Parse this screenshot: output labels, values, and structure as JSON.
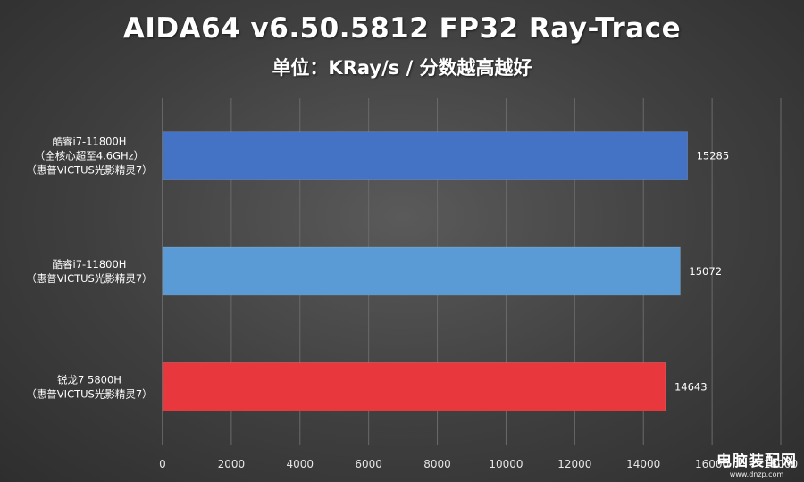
{
  "chart_data": {
    "type": "bar",
    "orientation": "horizontal",
    "title": "AIDA64 v6.50.5812 FP32 Ray-Trace",
    "subtitle": "单位：KRay/s / 分数越高越好",
    "categories": [
      [
        "酷睿i7-11800H",
        "（全核心超至4.6GHz）",
        "（惠普VICTUS光影精灵7）"
      ],
      [
        "酷睿i7-11800H",
        "（惠普VICTUS光影精灵7）"
      ],
      [
        "锐龙7 5800H",
        "（惠普VICTUS光影精灵7）"
      ]
    ],
    "values": [
      15285,
      15072,
      14643
    ],
    "value_labels": [
      "15285",
      "15072",
      "14643"
    ],
    "bar_colors": [
      "#4472c4",
      "#5b9bd5",
      "#e8383d"
    ],
    "xlim": [
      0,
      18000
    ],
    "xticks": [
      "0",
      "2000",
      "4000",
      "6000",
      "8000",
      "10000",
      "12000",
      "14000",
      "16000",
      "18000"
    ],
    "grid": true
  },
  "watermark": {
    "main": "电脑装配网",
    "url": "www.dnzp.com"
  }
}
